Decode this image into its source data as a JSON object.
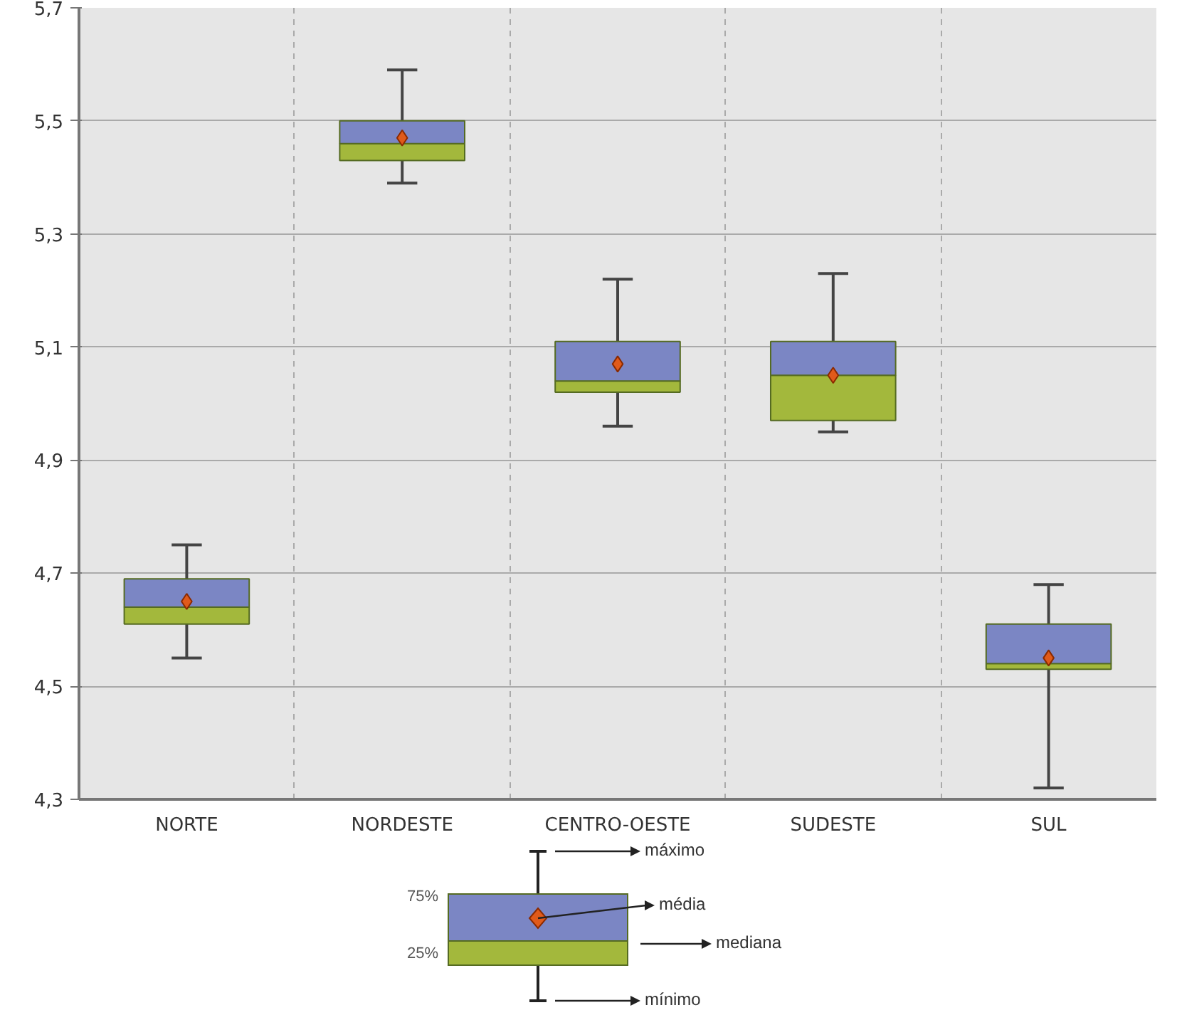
{
  "chart_data": {
    "type": "box",
    "categories": [
      "NORTE",
      "NORDESTE",
      "CENTRO-OESTE",
      "SUDESTE",
      "SUL"
    ],
    "boxes": [
      {
        "low": 4.55,
        "q1": 4.61,
        "median": 4.64,
        "q3": 4.69,
        "high": 4.75
      },
      {
        "low": 5.39,
        "q1": 5.43,
        "median": 5.46,
        "q3": 5.5,
        "high": 5.59
      },
      {
        "low": 4.96,
        "q1": 5.02,
        "median": 5.04,
        "q3": 5.11,
        "high": 5.22
      },
      {
        "low": 4.95,
        "q1": 4.97,
        "median": 5.05,
        "q3": 5.11,
        "high": 5.23
      },
      {
        "low": 4.32,
        "q1": 4.53,
        "median": 4.54,
        "q3": 4.61,
        "high": 4.68
      }
    ],
    "series": [
      {
        "type": "scatter",
        "color": "#e05a1a",
        "x": [
          "NORTE",
          "NORDESTE",
          "CENTRO-OESTE",
          "SUDESTE",
          "SUL"
        ],
        "values": [
          4.65,
          5.47,
          5.07,
          5.05,
          4.55
        ]
      }
    ],
    "ylim": [
      4.3,
      5.7
    ],
    "yticks": [
      {
        "value": 4.3,
        "label": "4,3"
      },
      {
        "value": 4.5,
        "label": "4,5"
      },
      {
        "value": 4.7,
        "label": "4,7"
      },
      {
        "value": 4.9,
        "label": "4,9"
      },
      {
        "value": 5.1,
        "label": "5,1"
      },
      {
        "value": 5.3,
        "label": "5,3"
      },
      {
        "value": 5.5,
        "label": "5,5"
      },
      {
        "value": 5.7,
        "label": "5,7"
      }
    ],
    "grid": true,
    "marker": "diamond",
    "annotations": [
      "máximo",
      "média",
      "mediana",
      "mínimo",
      "75%",
      "25%"
    ]
  }
}
